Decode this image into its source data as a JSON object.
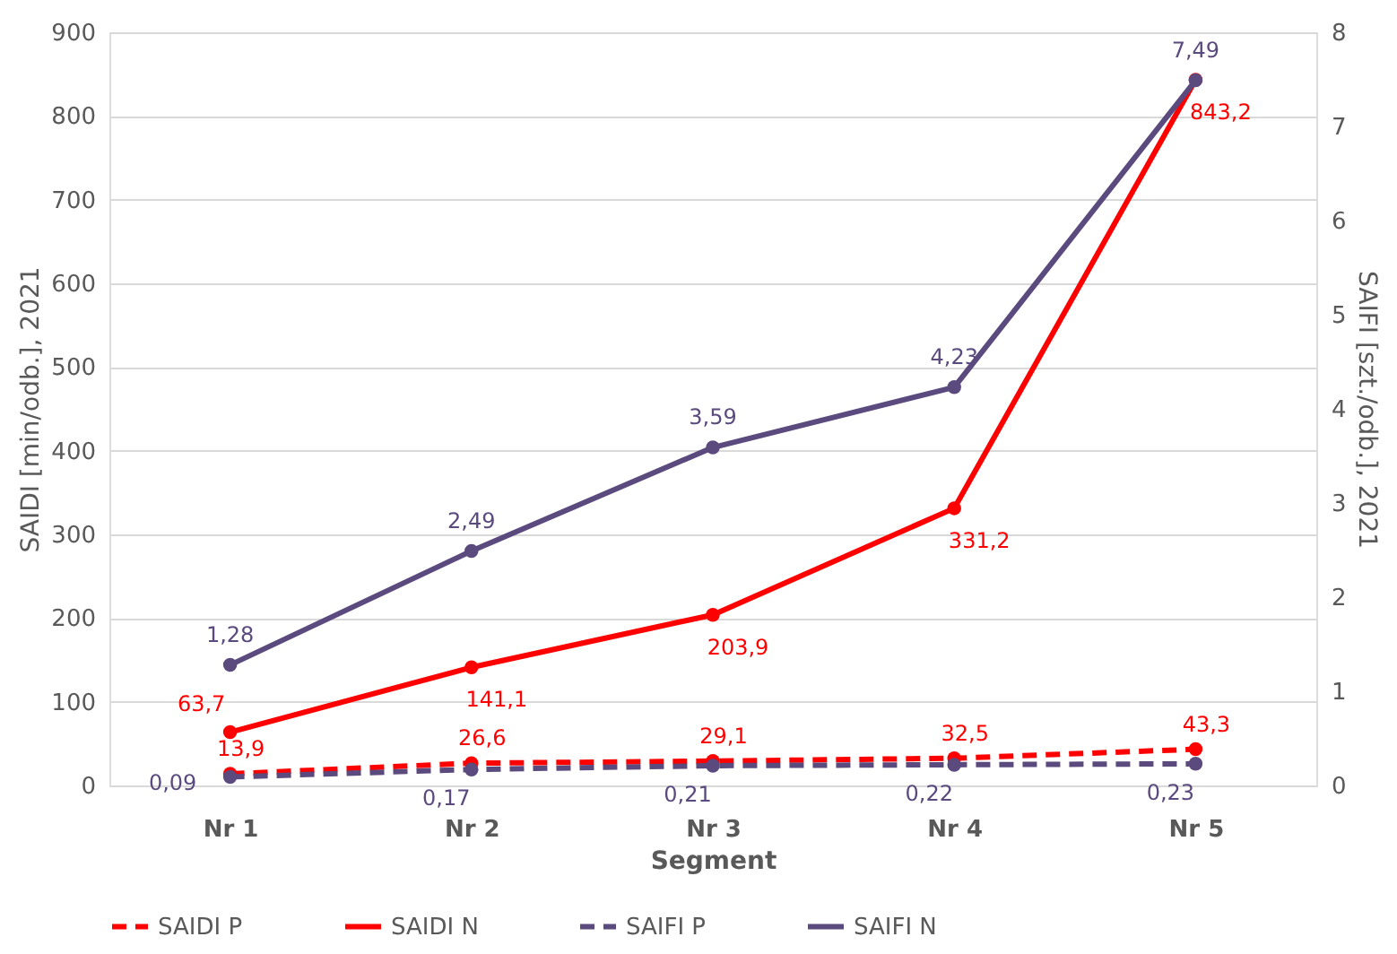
{
  "chart_data": {
    "type": "line",
    "xlabel": "Segment",
    "ylabel": "SAIDI [min/odb.], 2021",
    "y2label": "SAIFI [szt./odb.], 2021",
    "categories": [
      "Nr 1",
      "Nr 2",
      "Nr 3",
      "Nr 4",
      "Nr 5"
    ],
    "ylim": [
      0,
      900
    ],
    "yticks": [
      0,
      100,
      200,
      300,
      400,
      500,
      600,
      700,
      800,
      900
    ],
    "y2lim": [
      0,
      8
    ],
    "y2ticks": [
      0,
      1,
      2,
      3,
      4,
      5,
      6,
      7,
      8
    ],
    "grid": "y",
    "legend": "bottom",
    "marker": "circle",
    "series": [
      {
        "name": "SAIDI P",
        "color": "#ff0000",
        "line_style": "dashed",
        "values": [
          13.9,
          26.6,
          29.1,
          32.5,
          43.3
        ],
        "value_labels": [
          "13,9",
          "26,6",
          "29,1",
          "32,5",
          "43,3"
        ]
      },
      {
        "name": "SAIDI N",
        "color": "#ff0000",
        "line_style": "solid",
        "values": [
          63.7,
          141.1,
          203.9,
          331.2,
          843.2
        ],
        "value_labels": [
          "63,7",
          "141,1",
          "203,9",
          "331,2",
          "843,2"
        ]
      },
      {
        "name": "SAIFI P",
        "color": "#5b4a7e",
        "line_style": "dashed",
        "axis": "y2",
        "values": [
          0.09,
          0.17,
          0.21,
          0.22,
          0.23
        ],
        "value_labels": [
          "0,09",
          "0,17",
          "0,21",
          "0,22",
          "0,23"
        ]
      },
      {
        "name": "SAIFI N",
        "color": "#5b4a7e",
        "line_style": "solid",
        "axis": "y2",
        "values": [
          1.28,
          2.49,
          3.59,
          4.23,
          7.49
        ],
        "value_labels": [
          "1,28",
          "2,49",
          "3,59",
          "4,23",
          "7,49"
        ]
      }
    ]
  }
}
